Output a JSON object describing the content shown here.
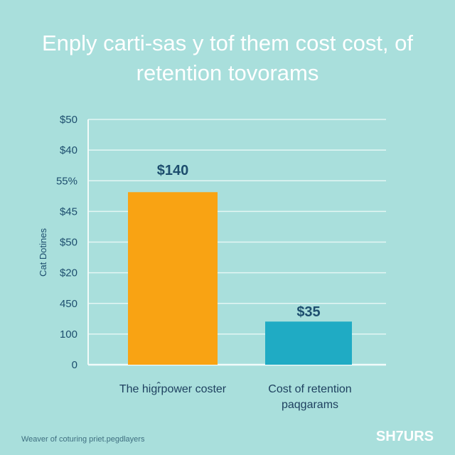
{
  "chart_data": {
    "type": "bar",
    "title": "Enply carti-sas y tof them cost cost, of retention tovorams",
    "ylabel": "Cat Dotines",
    "xlabel": "",
    "categories": [
      "The higr̂power coster",
      "Cost of retention paqgarams"
    ],
    "values": [
      140,
      35
    ],
    "data_labels": [
      "$140",
      "$35"
    ],
    "ytick_labels": [
      "0",
      "100",
      "450",
      "$20",
      "$50",
      "$45",
      "55%",
      "$40",
      "$50"
    ],
    "ylim": [
      0,
      199
    ],
    "grid": true,
    "colors": [
      "#f9a313",
      "#1fabc4"
    ]
  },
  "footer": {
    "caption": "Weaver of coturing priet.pegdlayers",
    "brand": "SH7URS"
  },
  "colors": {
    "background": "#a9dfdc",
    "text": "#1d4e6e"
  }
}
